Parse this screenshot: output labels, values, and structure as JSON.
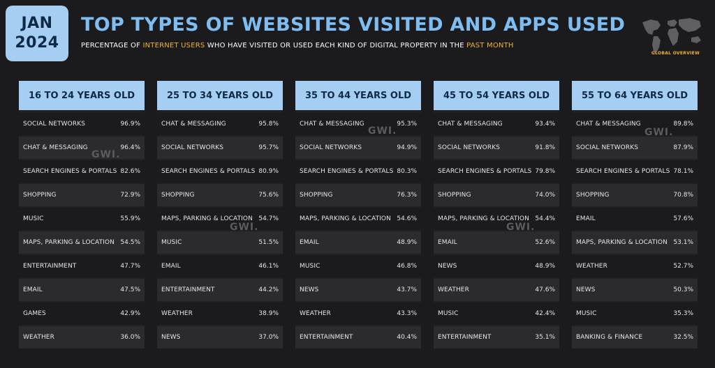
{
  "badge": {
    "month": "JAN",
    "year": "2024"
  },
  "header": {
    "title": "TOP TYPES OF WEBSITES VISITED AND APPS USED",
    "subtitle_parts": [
      {
        "text": "PERCENTAGE OF ",
        "highlight": false
      },
      {
        "text": "INTERNET USERS",
        "highlight": true
      },
      {
        "text": " WHO HAVE VISITED OR USED EACH KIND OF DIGITAL PROPERTY IN THE ",
        "highlight": false
      },
      {
        "text": "PAST MONTH",
        "highlight": true
      }
    ],
    "map_label": "GLOBAL OVERVIEW"
  },
  "watermark": "GWI.",
  "colors": {
    "accent": "#7fbcf0",
    "header_bg": "#a6cdf2",
    "highlight": "#f1b233",
    "background": "#1b1b1d"
  },
  "chart_data": {
    "type": "table",
    "title": "TOP TYPES OF WEBSITES VISITED AND APPS USED",
    "groups": [
      {
        "name": "16 TO 24 YEARS OLD",
        "rows": [
          {
            "label": "SOCIAL NETWORKS",
            "value": "96.9%"
          },
          {
            "label": "CHAT & MESSAGING",
            "value": "96.4%"
          },
          {
            "label": "SEARCH ENGINES & PORTALS",
            "value": "82.6%"
          },
          {
            "label": "SHOPPING",
            "value": "72.9%"
          },
          {
            "label": "MUSIC",
            "value": "55.9%"
          },
          {
            "label": "MAPS, PARKING & LOCATION",
            "value": "54.5%"
          },
          {
            "label": "ENTERTAINMENT",
            "value": "47.7%"
          },
          {
            "label": "EMAIL",
            "value": "47.5%"
          },
          {
            "label": "GAMES",
            "value": "42.9%"
          },
          {
            "label": "WEATHER",
            "value": "36.0%"
          }
        ]
      },
      {
        "name": "25 TO 34 YEARS OLD",
        "rows": [
          {
            "label": "CHAT & MESSAGING",
            "value": "95.8%"
          },
          {
            "label": "SOCIAL NETWORKS",
            "value": "95.7%"
          },
          {
            "label": "SEARCH ENGINES & PORTALS",
            "value": "80.9%"
          },
          {
            "label": "SHOPPING",
            "value": "75.6%"
          },
          {
            "label": "MAPS, PARKING & LOCATION",
            "value": "54.7%"
          },
          {
            "label": "MUSIC",
            "value": "51.5%"
          },
          {
            "label": "EMAIL",
            "value": "46.1%"
          },
          {
            "label": "ENTERTAINMENT",
            "value": "44.2%"
          },
          {
            "label": "WEATHER",
            "value": "38.9%"
          },
          {
            "label": "NEWS",
            "value": "37.0%"
          }
        ]
      },
      {
        "name": "35 TO 44 YEARS OLD",
        "rows": [
          {
            "label": "CHAT & MESSAGING",
            "value": "95.3%"
          },
          {
            "label": "SOCIAL NETWORKS",
            "value": "94.9%"
          },
          {
            "label": "SEARCH ENGINES & PORTALS",
            "value": "80.3%"
          },
          {
            "label": "SHOPPING",
            "value": "76.3%"
          },
          {
            "label": "MAPS, PARKING & LOCATION",
            "value": "54.6%"
          },
          {
            "label": "EMAIL",
            "value": "48.9%"
          },
          {
            "label": "MUSIC",
            "value": "46.8%"
          },
          {
            "label": "NEWS",
            "value": "43.7%"
          },
          {
            "label": "WEATHER",
            "value": "43.3%"
          },
          {
            "label": "ENTERTAINMENT",
            "value": "40.4%"
          }
        ]
      },
      {
        "name": "45 TO 54 YEARS OLD",
        "rows": [
          {
            "label": "CHAT & MESSAGING",
            "value": "93.4%"
          },
          {
            "label": "SOCIAL NETWORKS",
            "value": "91.8%"
          },
          {
            "label": "SEARCH ENGINES & PORTALS",
            "value": "79.8%"
          },
          {
            "label": "SHOPPING",
            "value": "74.0%"
          },
          {
            "label": "MAPS, PARKING & LOCATION",
            "value": "54.4%"
          },
          {
            "label": "EMAIL",
            "value": "52.6%"
          },
          {
            "label": "NEWS",
            "value": "48.9%"
          },
          {
            "label": "WEATHER",
            "value": "47.6%"
          },
          {
            "label": "MUSIC",
            "value": "42.4%"
          },
          {
            "label": "ENTERTAINMENT",
            "value": "35.1%"
          }
        ]
      },
      {
        "name": "55 TO 64 YEARS OLD",
        "rows": [
          {
            "label": "CHAT & MESSAGING",
            "value": "89.8%"
          },
          {
            "label": "SOCIAL NETWORKS",
            "value": "87.9%"
          },
          {
            "label": "SEARCH ENGINES & PORTALS",
            "value": "78.1%"
          },
          {
            "label": "SHOPPING",
            "value": "70.8%"
          },
          {
            "label": "EMAIL",
            "value": "57.6%"
          },
          {
            "label": "MAPS, PARKING & LOCATION",
            "value": "53.1%"
          },
          {
            "label": "WEATHER",
            "value": "52.7%"
          },
          {
            "label": "NEWS",
            "value": "50.3%"
          },
          {
            "label": "MUSIC",
            "value": "35.3%"
          },
          {
            "label": "BANKING & FINANCE",
            "value": "32.5%"
          }
        ]
      }
    ]
  }
}
